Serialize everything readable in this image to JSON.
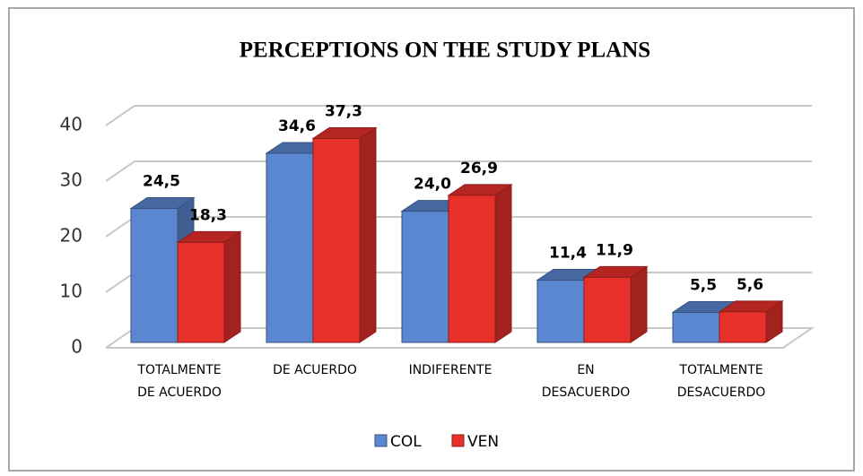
{
  "chart_data": {
    "type": "bar3d",
    "title": "PERCEPTIONS ON THE STUDY PLANS",
    "categories": [
      [
        "TOTALMENTE",
        "DE ACUERDO"
      ],
      [
        "DE ACUERDO"
      ],
      [
        "INDIFERENTE"
      ],
      [
        "EN",
        "DESACUERDO"
      ],
      [
        "TOTALMENTE",
        "DESACUERDO"
      ]
    ],
    "series": [
      {
        "name": "COL",
        "color": "#5b86d0",
        "values": [
          24.5,
          34.6,
          24.0,
          11.4,
          5.5
        ],
        "value_labels": [
          "24,5",
          "34,6",
          "24,0",
          "11,4",
          "5,5"
        ]
      },
      {
        "name": "VEN",
        "color": "#e8312b",
        "values": [
          18.3,
          37.3,
          26.9,
          11.9,
          5.6
        ],
        "value_labels": [
          "18,3",
          "37,3",
          "26,9",
          "11,9",
          "5,6"
        ]
      }
    ],
    "ylim": [
      0,
      40
    ],
    "yticks": [
      0,
      10,
      20,
      30,
      40
    ],
    "grid": true,
    "legend": "bottom"
  }
}
